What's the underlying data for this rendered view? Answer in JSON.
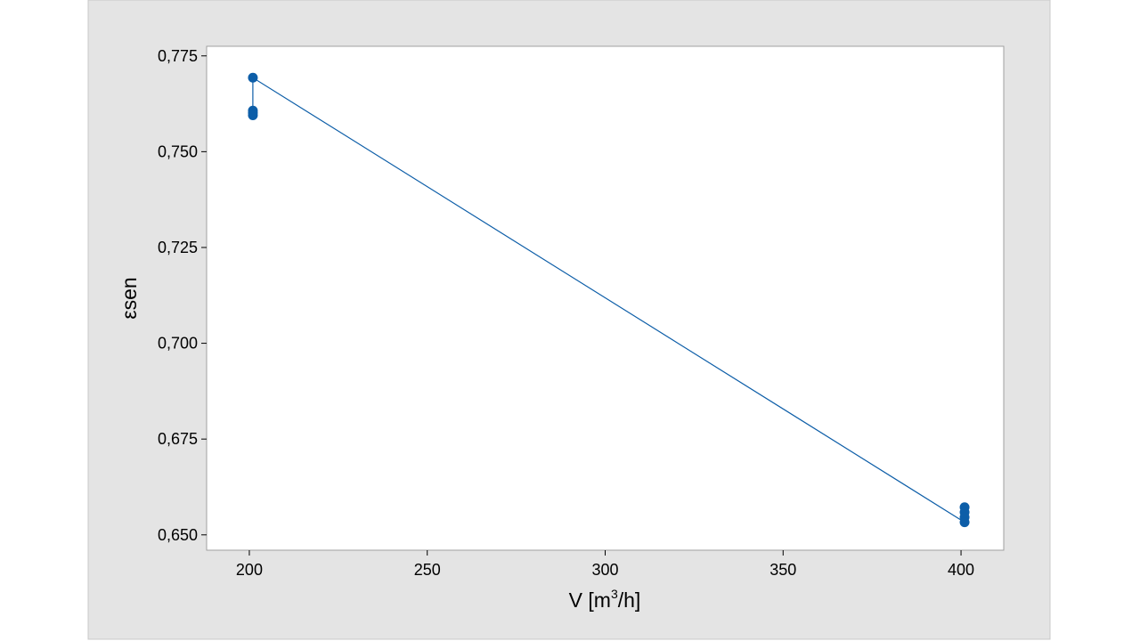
{
  "chart_data": {
    "type": "scatter",
    "xlabel": "V [m3/h]",
    "xlabel_main": "V  [m",
    "xlabel_sup": "3",
    "xlabel_tail": "/h]",
    "ylabel": "εsen",
    "xlim": [
      188,
      412
    ],
    "ylim": [
      0.646,
      0.7775
    ],
    "xticks": [
      200,
      250,
      300,
      350,
      400
    ],
    "xtick_labels": [
      "200",
      "250",
      "300",
      "350",
      "400"
    ],
    "yticks": [
      0.65,
      0.675,
      0.7,
      0.725,
      0.75,
      0.775
    ],
    "ytick_labels": [
      "0,650",
      "0,675",
      "0,700",
      "0,725",
      "0,750",
      "0,775"
    ],
    "grid": false,
    "series": [
      {
        "points": [
          {
            "x": 201,
            "y": 0.7693
          },
          {
            "x": 201,
            "y": 0.7607
          },
          {
            "x": 201,
            "y": 0.7601
          },
          {
            "x": 201,
            "y": 0.7595
          },
          {
            "x": 401,
            "y": 0.6572
          },
          {
            "x": 401,
            "y": 0.6559
          },
          {
            "x": 401,
            "y": 0.6546
          },
          {
            "x": 401,
            "y": 0.6533
          }
        ],
        "connector": [
          {
            "x": 201,
            "y": 0.7595
          },
          {
            "x": 201,
            "y": 0.7693
          },
          {
            "x": 401,
            "y": 0.6533
          }
        ]
      }
    ],
    "colors": {
      "outer_background": "#e4e4e4",
      "plot_background": "#ffffff",
      "marker": "#0d5ea8",
      "line": "#0d5ea8",
      "axis": "#a0a0a0"
    }
  }
}
